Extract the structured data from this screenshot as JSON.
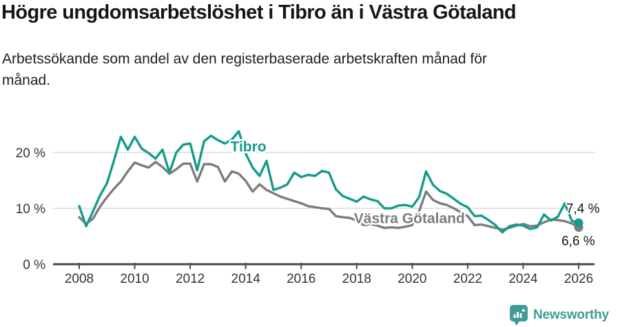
{
  "header": {
    "title": "Högre ungdomsarbetslöshet i Tibro än i Västra Götaland",
    "subtitle": "Arbetssökande som andel av den registerbaserade arbetskraften månad för månad."
  },
  "footer": {
    "brand": "Newsworthy"
  },
  "chart_data": {
    "type": "line",
    "x_unit": "year",
    "x_start": 2008,
    "x_step": 0.25,
    "x_ticks": [
      2008,
      2010,
      2012,
      2014,
      2016,
      2018,
      2020,
      2022,
      2024,
      2026
    ],
    "y_ticks": [
      {
        "value": 0,
        "label": "0 %"
      },
      {
        "value": 10,
        "label": "10 %"
      },
      {
        "value": 20,
        "label": "20 %"
      }
    ],
    "y_gridlines": [
      10,
      20
    ],
    "xlim": [
      2007.1,
      2026.55
    ],
    "ylim": [
      0,
      25.5
    ],
    "grid": "horizontal-only",
    "legend": "inline-labels",
    "colors": {
      "grid": "#dcdcdc",
      "axis": "#4a4a4a",
      "tick_text": "#333333",
      "tibro": "#149b8c",
      "vastra_gotaland": "#7c7c7c"
    },
    "series": [
      {
        "name": "Västra Götaland",
        "slug": "vastra-gotaland",
        "color": "#7c7c7c",
        "end_value_label": "6,6 %",
        "label_anchor": {
          "x": 2017.9,
          "y": 7.35
        },
        "end_label_anchor": {
          "x": 2025.38,
          "y": 3.4
        },
        "values": [
          8.4,
          7.2,
          8.2,
          10.3,
          12.0,
          13.5,
          14.8,
          16.6,
          18.2,
          17.7,
          17.3,
          18.3,
          17.4,
          16.2,
          17.0,
          18.0,
          18.0,
          14.8,
          17.9,
          17.9,
          17.4,
          14.8,
          16.6,
          16.2,
          14.9,
          13.0,
          14.3,
          13.3,
          12.7,
          12.1,
          11.7,
          11.3,
          10.9,
          10.4,
          10.2,
          10.0,
          9.9,
          8.6,
          8.4,
          8.3,
          7.8,
          7.0,
          7.2,
          6.9,
          6.5,
          6.6,
          6.5,
          6.7,
          7.0,
          9.5,
          13.0,
          11.5,
          10.9,
          10.6,
          10.0,
          9.3,
          8.6,
          7.0,
          7.1,
          6.8,
          6.5,
          6.2,
          6.5,
          6.9,
          7.2,
          6.8,
          6.9,
          7.5,
          8.0,
          7.9,
          7.7,
          7.3,
          6.6
        ]
      },
      {
        "name": "Tibro",
        "slug": "tibro",
        "color": "#149b8c",
        "end_value_label": "7,4 %",
        "label_anchor": {
          "x": 2013.45,
          "y": 20.2
        },
        "end_label_anchor": {
          "x": 2025.55,
          "y": 9.2
        },
        "values": [
          10.4,
          6.8,
          9.5,
          12.3,
          14.5,
          18.5,
          22.8,
          20.5,
          22.8,
          20.7,
          19.9,
          18.9,
          20.5,
          16.4,
          20.0,
          21.4,
          21.6,
          16.8,
          22.0,
          23.0,
          22.2,
          21.6,
          22.3,
          23.8,
          19.8,
          17.3,
          15.8,
          18.5,
          13.3,
          13.7,
          14.3,
          16.4,
          15.6,
          16.0,
          15.8,
          16.7,
          16.4,
          13.4,
          12.2,
          11.7,
          11.2,
          12.1,
          11.6,
          11.3,
          10.0,
          10.0,
          10.5,
          10.6,
          10.3,
          12.0,
          16.6,
          14.2,
          13.1,
          12.6,
          11.7,
          10.8,
          10.2,
          8.6,
          8.7,
          7.9,
          7.0,
          5.7,
          6.8,
          7.1,
          6.9,
          6.3,
          6.6,
          8.9,
          7.8,
          8.5,
          10.9,
          7.8,
          7.4
        ]
      }
    ]
  }
}
